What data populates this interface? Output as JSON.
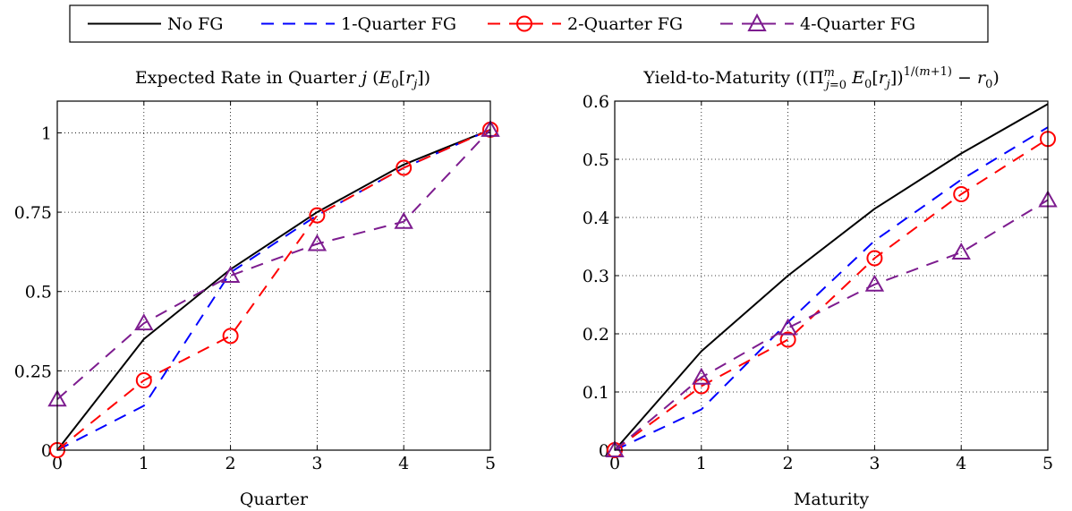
{
  "legend": {
    "entries": [
      "No FG",
      "1-Quarter FG",
      "2-Quarter FG",
      "4-Quarter FG"
    ]
  },
  "chart_data": [
    {
      "type": "line",
      "title": "Expected Rate in Quarter j (E0[rj])",
      "xlabel": "Quarter",
      "ylabel": "",
      "xlim": [
        0,
        5
      ],
      "ylim": [
        0,
        1.1
      ],
      "grid": true,
      "x": [
        0,
        1,
        2,
        3,
        4,
        5
      ],
      "xticks": [
        "0",
        "1",
        "2",
        "3",
        "4",
        "5"
      ],
      "yticks": [
        {
          "v": 0,
          "label": "0"
        },
        {
          "v": 0.25,
          "label": "0.25"
        },
        {
          "v": 0.5,
          "label": "0.5"
        },
        {
          "v": 0.75,
          "label": "0.75"
        },
        {
          "v": 1,
          "label": "1"
        }
      ],
      "series": [
        {
          "name": "No FG",
          "color": "#000000",
          "dash": "solid",
          "marker": "none",
          "values": [
            0,
            0.35,
            0.57,
            0.75,
            0.9,
            1.01
          ]
        },
        {
          "name": "1-Quarter FG",
          "color": "#0000ff",
          "dash": "dashed",
          "marker": "none",
          "values": [
            0,
            0.14,
            0.56,
            0.74,
            0.89,
            1.01
          ]
        },
        {
          "name": "2-Quarter FG",
          "color": "#ff0000",
          "dash": "dashed",
          "marker": "circle",
          "values": [
            0,
            0.22,
            0.36,
            0.74,
            0.89,
            1.01
          ]
        },
        {
          "name": "4-Quarter FG",
          "color": "#7d1c8f",
          "dash": "dashed",
          "marker": "triangle",
          "values": [
            0.16,
            0.4,
            0.55,
            0.65,
            0.72,
            1.01
          ]
        }
      ]
    },
    {
      "type": "line",
      "title": "Yield-to-Maturity ((Πm j=0 E0[rj])1/(m+1) − r0)",
      "xlabel": "Maturity",
      "ylabel": "",
      "xlim": [
        0,
        5
      ],
      "ylim": [
        0,
        0.6
      ],
      "grid": true,
      "x": [
        0,
        1,
        2,
        3,
        4,
        5
      ],
      "xticks": [
        "0",
        "1",
        "2",
        "3",
        "4",
        "5"
      ],
      "yticks": [
        {
          "v": 0,
          "label": "0"
        },
        {
          "v": 0.1,
          "label": "0.1"
        },
        {
          "v": 0.2,
          "label": "0.2"
        },
        {
          "v": 0.3,
          "label": "0.3"
        },
        {
          "v": 0.4,
          "label": "0.4"
        },
        {
          "v": 0.5,
          "label": "0.5"
        },
        {
          "v": 0.6,
          "label": "0.6"
        }
      ],
      "series": [
        {
          "name": "No FG",
          "color": "#000000",
          "dash": "solid",
          "marker": "none",
          "values": [
            0,
            0.17,
            0.3,
            0.415,
            0.51,
            0.595
          ]
        },
        {
          "name": "1-Quarter FG",
          "color": "#0000ff",
          "dash": "dashed",
          "marker": "none",
          "values": [
            0,
            0.07,
            0.22,
            0.36,
            0.465,
            0.555
          ]
        },
        {
          "name": "2-Quarter FG",
          "color": "#ff0000",
          "dash": "dashed",
          "marker": "circle",
          "values": [
            0,
            0.11,
            0.19,
            0.33,
            0.44,
            0.535
          ]
        },
        {
          "name": "4-Quarter FG",
          "color": "#7d1c8f",
          "dash": "dashed",
          "marker": "triangle",
          "values": [
            0,
            0.125,
            0.21,
            0.285,
            0.34,
            0.43
          ]
        }
      ]
    }
  ]
}
